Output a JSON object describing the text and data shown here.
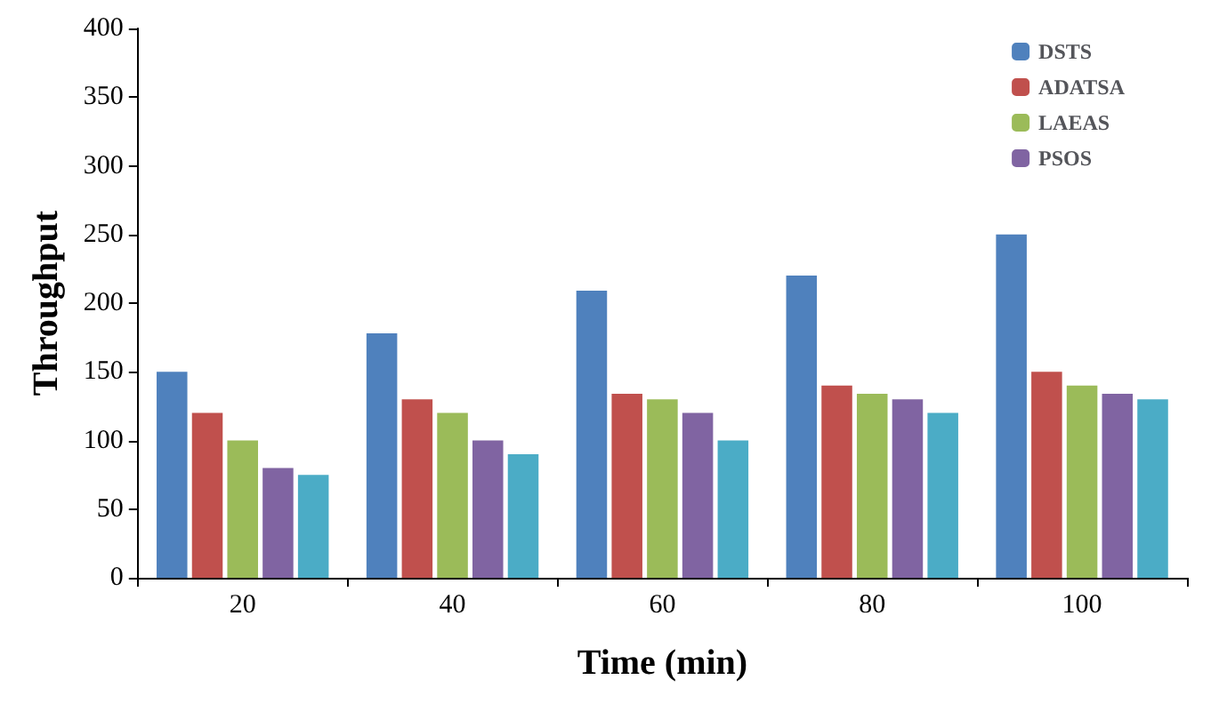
{
  "chart_data": {
    "type": "bar",
    "xlabel": "Time (min)",
    "ylabel": "Throughput",
    "categories": [
      "20",
      "40",
      "60",
      "80",
      "100"
    ],
    "series": [
      {
        "name": "DSTS",
        "color": "#4f81bd",
        "values": [
          150,
          178,
          209,
          220,
          250
        ]
      },
      {
        "name": "ADATSA",
        "color": "#c0504d",
        "values": [
          120,
          130,
          134,
          140,
          150
        ]
      },
      {
        "name": "LAEAS",
        "color": "#9bbb59",
        "values": [
          100,
          120,
          130,
          134,
          140
        ]
      },
      {
        "name": "PSOS",
        "color": "#8064a2",
        "values": [
          80,
          100,
          120,
          130,
          134
        ]
      },
      {
        "color": "#4bacc6",
        "values": [
          75,
          90,
          100,
          120,
          130
        ]
      }
    ],
    "ylim": [
      0,
      400
    ],
    "yticks": [
      0,
      50,
      100,
      150,
      200,
      250,
      300,
      350,
      400
    ],
    "grid": false,
    "legend": "top right"
  }
}
